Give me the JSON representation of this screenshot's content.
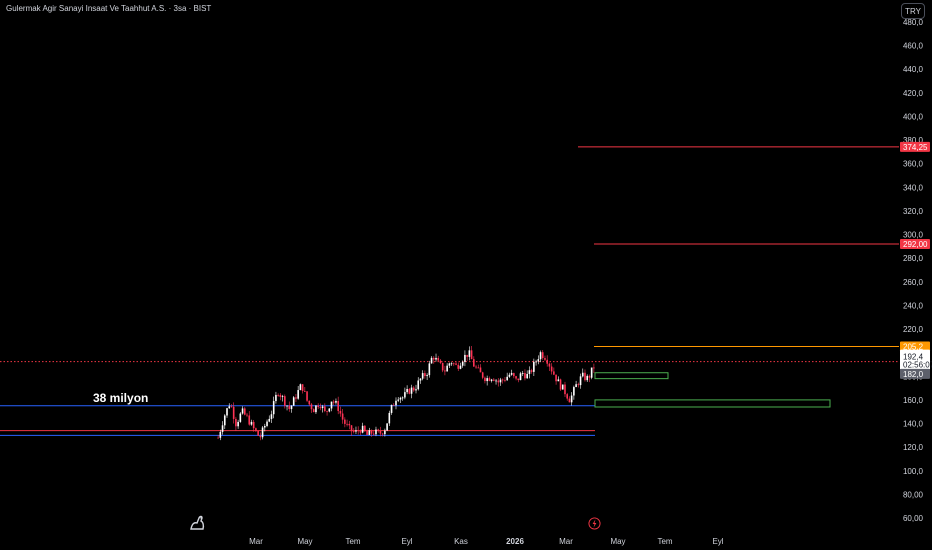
{
  "title": "Gulermak Agir Sanayi Insaat Ve Taahhut A.S. · 3sa · BIST",
  "currency": "TRY",
  "colors": {
    "up": "#ffffff",
    "down": "#ff3355",
    "red_line": "#ff3355",
    "blue_line": "#2962ff",
    "orange_line": "#ff9800",
    "green_box": "#4caf50",
    "price_dotted": "#f23645",
    "axis_text": "#d1d4dc"
  },
  "annotation": "38 milyon",
  "chart_data": {
    "type": "candlestick",
    "title": "Gulermak Agir Sanayi Insaat Ve Taahhut A.S. · 3sa · BIST",
    "ylim": [
      55,
      488
    ],
    "y_ticks": [
      "60,00",
      "80,00",
      "100,0",
      "120,0",
      "140,0",
      "160,0",
      "180,0",
      "200,0",
      "220,0",
      "240,0",
      "260,0",
      "280,0",
      "300,0",
      "320,0",
      "340,0",
      "360,0",
      "380,0",
      "400,0",
      "420,0",
      "440,0",
      "460,0",
      "480,0"
    ],
    "y_tick_values": [
      60,
      80,
      100,
      120,
      140,
      160,
      180,
      200,
      220,
      240,
      260,
      280,
      300,
      320,
      340,
      360,
      380,
      400,
      420,
      440,
      460,
      480
    ],
    "x_ticks": [
      "Mar",
      "May",
      "Tem",
      "Eyl",
      "Kas",
      "2026",
      "Mar",
      "May",
      "Tem",
      "Eyl"
    ],
    "price_path": [
      {
        "x": 0,
        "y": 128
      },
      {
        "x": 1,
        "y": 146
      },
      {
        "x": 2,
        "y": 158
      },
      {
        "x": 3,
        "y": 140
      },
      {
        "x": 4,
        "y": 150
      },
      {
        "x": 5,
        "y": 144
      },
      {
        "x": 6,
        "y": 135
      },
      {
        "x": 7,
        "y": 128
      },
      {
        "x": 8,
        "y": 140
      },
      {
        "x": 9,
        "y": 150
      },
      {
        "x": 10,
        "y": 168
      },
      {
        "x": 11,
        "y": 160
      },
      {
        "x": 12,
        "y": 152
      },
      {
        "x": 13,
        "y": 163
      },
      {
        "x": 14,
        "y": 173
      },
      {
        "x": 15,
        "y": 158
      },
      {
        "x": 16,
        "y": 152
      },
      {
        "x": 17,
        "y": 158
      },
      {
        "x": 18,
        "y": 148
      },
      {
        "x": 19,
        "y": 160
      },
      {
        "x": 20,
        "y": 155
      },
      {
        "x": 21,
        "y": 142
      },
      {
        "x": 22,
        "y": 135
      },
      {
        "x": 23,
        "y": 132
      },
      {
        "x": 24,
        "y": 136
      },
      {
        "x": 25,
        "y": 130
      },
      {
        "x": 26,
        "y": 133
      },
      {
        "x": 27,
        "y": 131
      },
      {
        "x": 28,
        "y": 136
      },
      {
        "x": 29,
        "y": 152
      },
      {
        "x": 30,
        "y": 164
      },
      {
        "x": 31,
        "y": 162
      },
      {
        "x": 32,
        "y": 168
      },
      {
        "x": 33,
        "y": 170
      },
      {
        "x": 34,
        "y": 178
      },
      {
        "x": 35,
        "y": 183
      },
      {
        "x": 36,
        "y": 198
      },
      {
        "x": 37,
        "y": 190
      },
      {
        "x": 38,
        "y": 185
      },
      {
        "x": 39,
        "y": 193
      },
      {
        "x": 40,
        "y": 188
      },
      {
        "x": 41,
        "y": 195
      },
      {
        "x": 42,
        "y": 200
      },
      {
        "x": 43,
        "y": 188
      },
      {
        "x": 44,
        "y": 182
      },
      {
        "x": 45,
        "y": 178
      },
      {
        "x": 46,
        "y": 180
      },
      {
        "x": 47,
        "y": 175
      },
      {
        "x": 48,
        "y": 178
      },
      {
        "x": 49,
        "y": 182
      },
      {
        "x": 50,
        "y": 176
      },
      {
        "x": 51,
        "y": 183
      },
      {
        "x": 52,
        "y": 180
      },
      {
        "x": 53,
        "y": 190
      },
      {
        "x": 54,
        "y": 200
      },
      {
        "x": 55,
        "y": 196
      },
      {
        "x": 56,
        "y": 185
      },
      {
        "x": 57,
        "y": 175
      },
      {
        "x": 58,
        "y": 168
      },
      {
        "x": 59,
        "y": 160
      },
      {
        "x": 60,
        "y": 172
      },
      {
        "x": 61,
        "y": 180
      },
      {
        "x": 62,
        "y": 178
      },
      {
        "x": 63,
        "y": 188
      }
    ],
    "horizontal_levels": [
      {
        "value": 374.25,
        "color": "#f23645",
        "label": "374,25",
        "from": 0.71
      },
      {
        "value": 292.0,
        "color": "#f23645",
        "label": "292,00",
        "from": 0.73
      },
      {
        "value": 205.2,
        "color": "#ff9800",
        "label": "205,2",
        "from": 0.73
      },
      {
        "value": 192.4,
        "color": "#f23645",
        "label": "192,4",
        "sublabel": "02:56:07",
        "dotted": true,
        "from": 0
      },
      {
        "value": 182.0,
        "color": "#5d606b",
        "label": "182,0",
        "from": 1.0
      },
      {
        "value": 155.0,
        "color": "#2962ff",
        "from": 0,
        "to": 0.73
      },
      {
        "value": 134.0,
        "color": "#f23645",
        "from": 0,
        "to": 0.73
      },
      {
        "value": 130.0,
        "color": "#2962ff",
        "from": 0,
        "to": 0.73
      }
    ],
    "zones": [
      {
        "from_value": 178.0,
        "to_value": 183.0,
        "color": "#4caf50"
      },
      {
        "from_value": 154.0,
        "to_value": 160.0,
        "color": "#4caf50"
      }
    ],
    "annotation": "38 milyon",
    "annotation_value": 162
  }
}
